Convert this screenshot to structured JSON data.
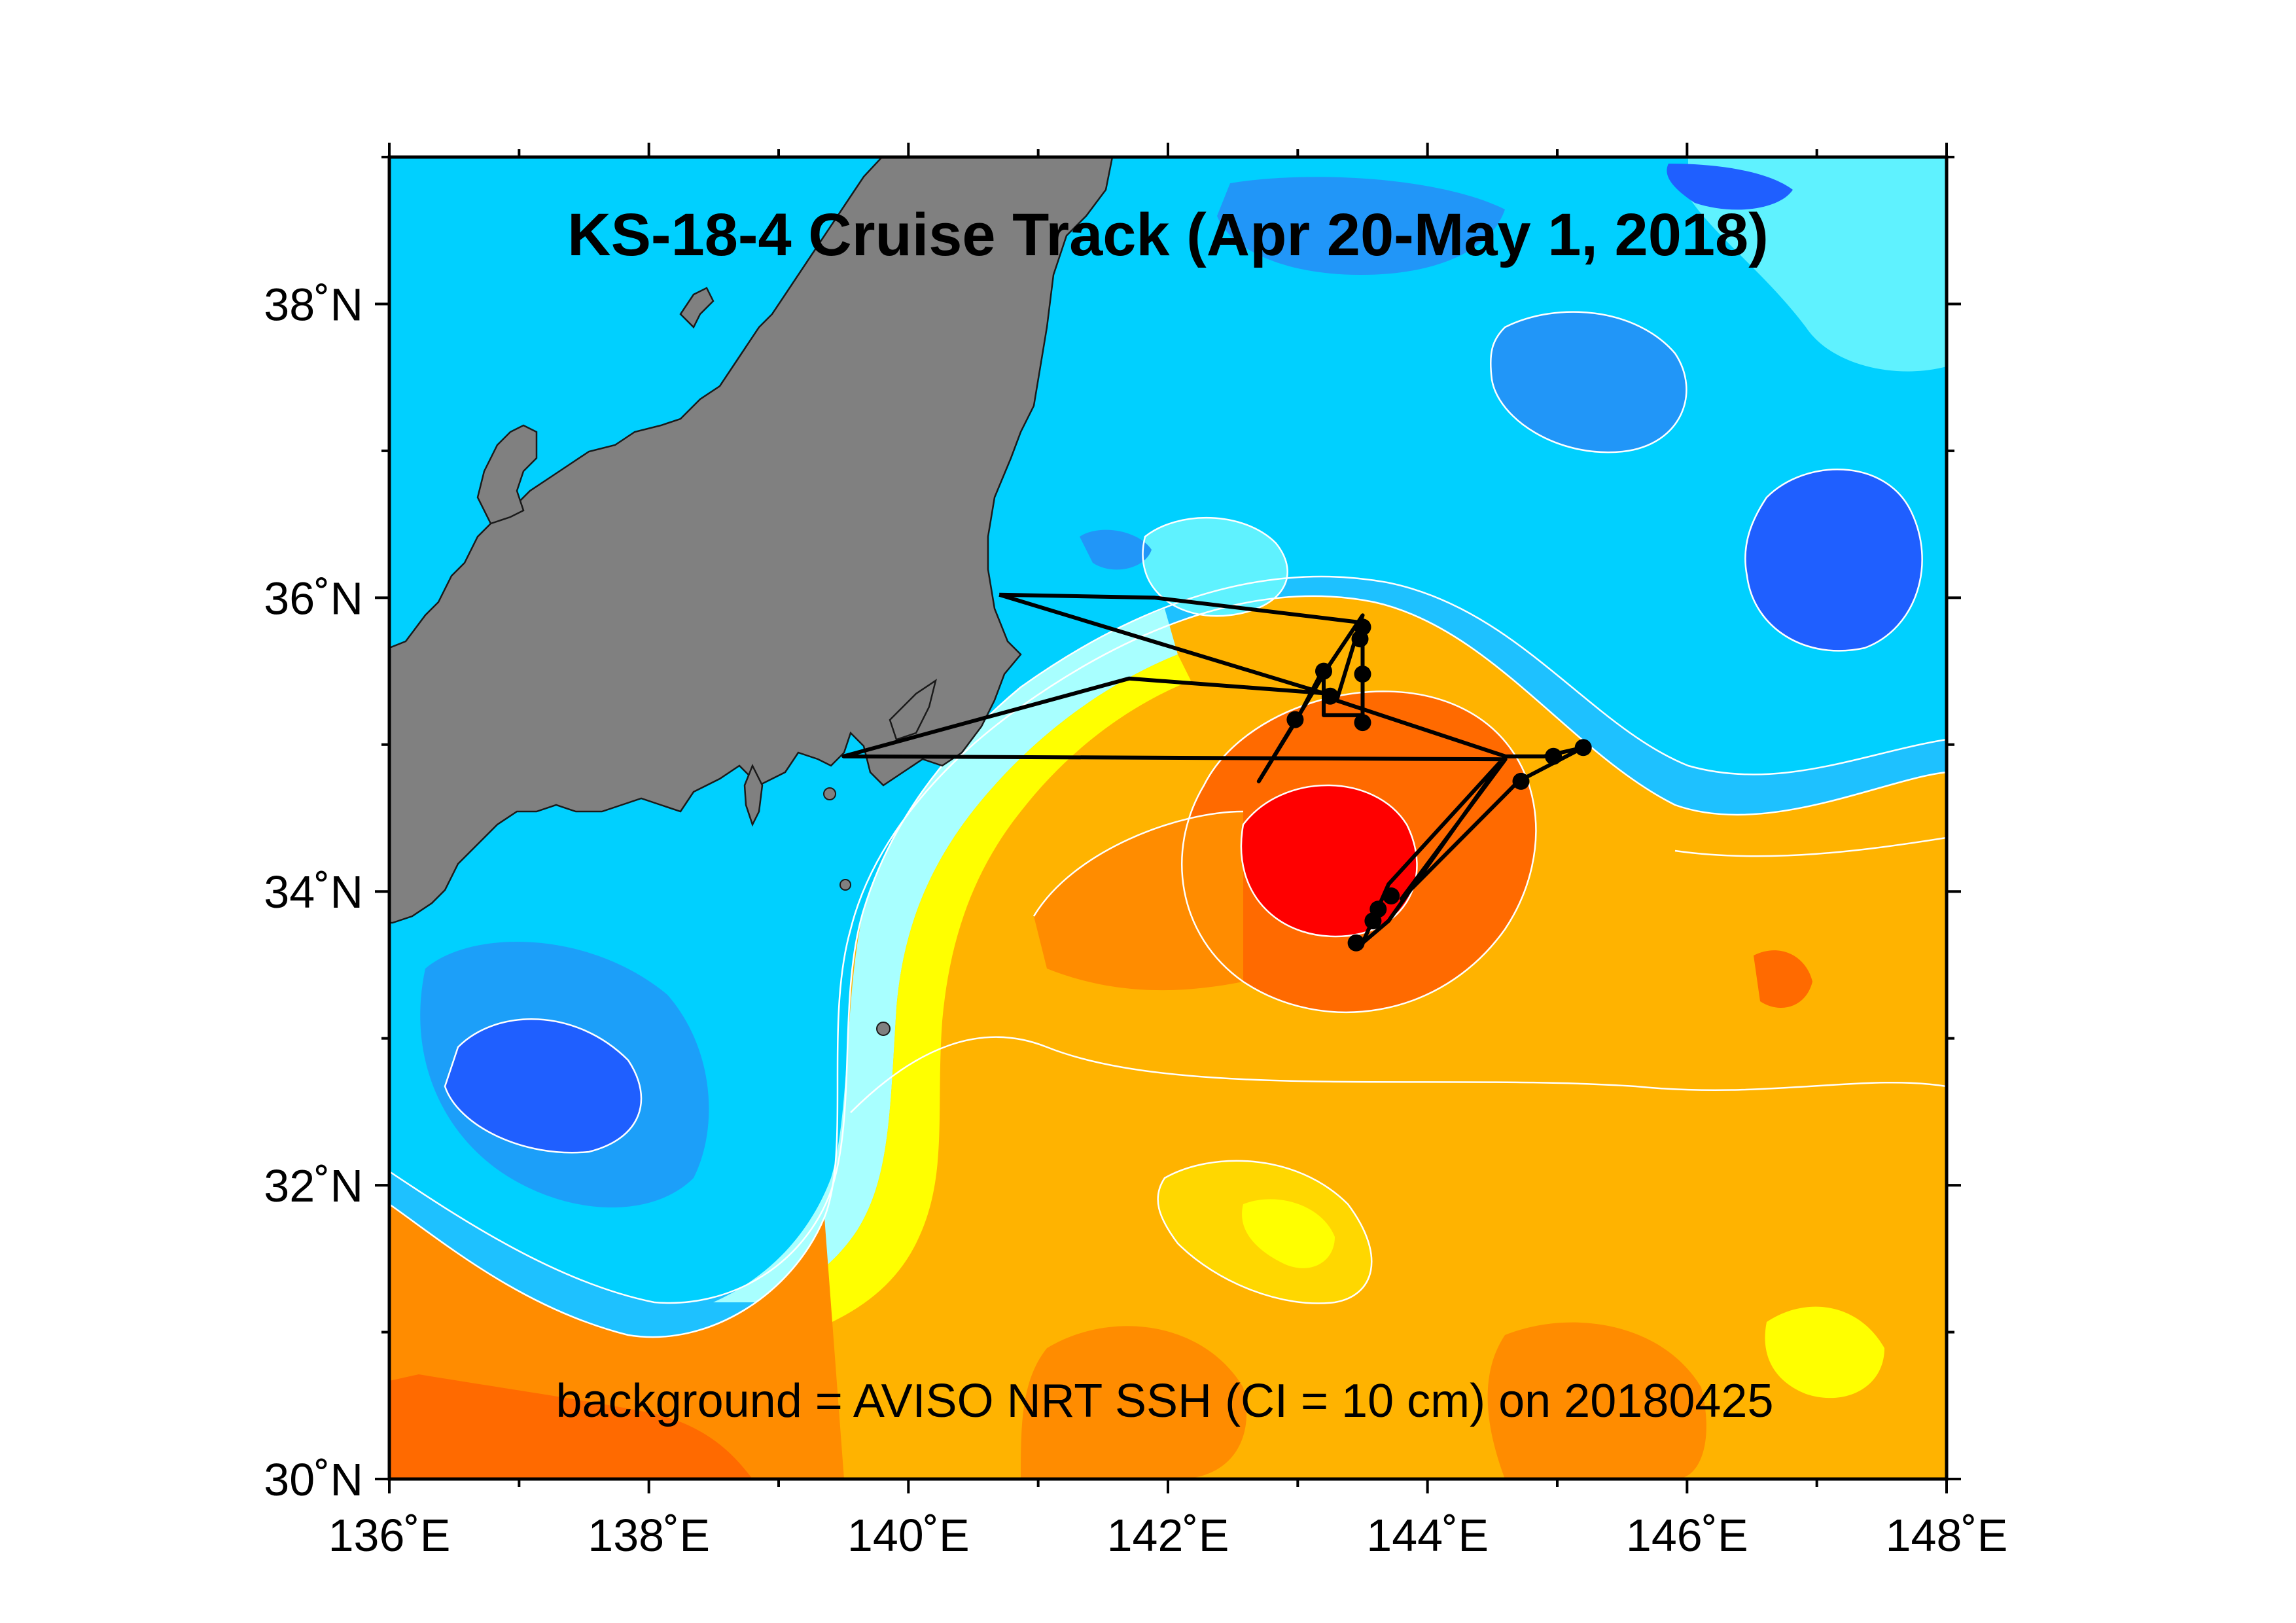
{
  "title": "KS-18-4 Cruise Track (Apr 20-May 1, 2018)",
  "caption": "background = AVISO NRT SSH (CI = 10 cm) on 20180425",
  "axes": {
    "lon_range": [
      136,
      148
    ],
    "lat_range": [
      30,
      39
    ],
    "lon_ticks": [
      {
        "value": 136,
        "label": "136˚E"
      },
      {
        "value": 138,
        "label": "138˚E"
      },
      {
        "value": 140,
        "label": "140˚E"
      },
      {
        "value": 142,
        "label": "142˚E"
      },
      {
        "value": 144,
        "label": "144˚E"
      },
      {
        "value": 146,
        "label": "146˚E"
      },
      {
        "value": 148,
        "label": "148˚E"
      }
    ],
    "lat_ticks": [
      {
        "value": 30,
        "label": "30˚N"
      },
      {
        "value": 32,
        "label": "32˚N"
      },
      {
        "value": 34,
        "label": "34˚N"
      },
      {
        "value": 36,
        "label": "36˚N"
      },
      {
        "value": 38,
        "label": "38˚N"
      }
    ]
  },
  "colors": {
    "land": "#808080",
    "ssh_levels": [
      "#1f5fff",
      "#2196f8",
      "#1ec1ff",
      "#00d0ff",
      "#5ff2ff",
      "#a8ffff",
      "#ffff00",
      "#ffd700",
      "#ffb300",
      "#ff8c00",
      "#ff6a00",
      "#ff0000"
    ]
  },
  "cruise_track": {
    "points": [
      [
        140.7,
        36.02
      ],
      [
        141.9,
        36.0
      ],
      [
        143.5,
        35.83
      ],
      [
        143.5,
        35.78
      ],
      [
        143.5,
        35.5
      ],
      [
        143.5,
        35.2
      ],
      [
        143.2,
        35.2
      ],
      [
        143.2,
        35.52
      ],
      [
        143.0,
        35.18
      ],
      [
        142.7,
        34.75
      ],
      [
        143.25,
        35.55
      ],
      [
        143.5,
        35.88
      ],
      [
        143.3,
        35.3
      ],
      [
        144.6,
        34.92
      ],
      [
        143.7,
        34.05
      ],
      [
        143.5,
        33.65
      ],
      [
        143.7,
        33.8
      ],
      [
        144.6,
        34.92
      ],
      [
        144.9,
        34.92
      ],
      [
        145.2,
        34.98
      ],
      [
        144.7,
        34.75
      ],
      [
        143.8,
        33.95
      ],
      [
        144.6,
        34.9
      ],
      [
        139.5,
        34.92
      ],
      [
        141.7,
        35.45
      ],
      [
        143.2,
        35.35
      ],
      [
        140.7,
        36.02
      ]
    ],
    "stations": [
      [
        143.5,
        35.8
      ],
      [
        143.48,
        35.72
      ],
      [
        143.2,
        35.5
      ],
      [
        143.5,
        35.48
      ],
      [
        143.25,
        35.33
      ],
      [
        143.5,
        35.15
      ],
      [
        142.98,
        35.17
      ],
      [
        145.2,
        34.98
      ],
      [
        144.97,
        34.92
      ],
      [
        144.72,
        34.75
      ],
      [
        143.72,
        33.97
      ],
      [
        143.62,
        33.88
      ],
      [
        143.58,
        33.8
      ],
      [
        143.45,
        33.65
      ]
    ]
  }
}
